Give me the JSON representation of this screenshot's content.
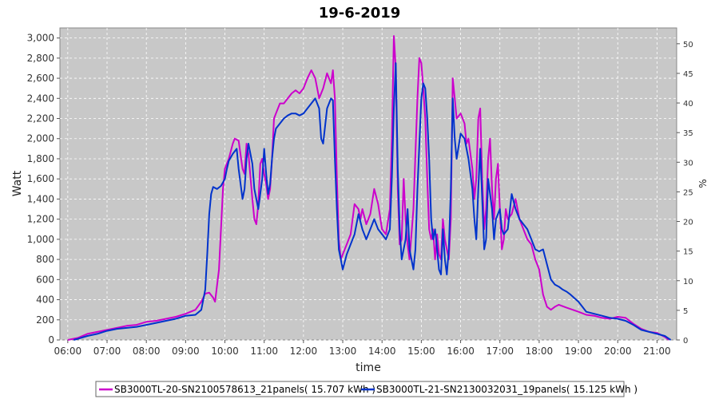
{
  "chart_data": {
    "type": "line",
    "title": "19-6-2019",
    "xlabel": "time",
    "ylabel": "Watt",
    "y2label": "%",
    "x_ticks": [
      "06:00",
      "07:00",
      "08:00",
      "09:00",
      "10:00",
      "11:00",
      "12:00",
      "13:00",
      "14:00",
      "15:00",
      "16:00",
      "17:00",
      "18:00",
      "19:00",
      "20:00",
      "21:00"
    ],
    "xlim": [
      5.8,
      21.5
    ],
    "ylim": [
      0,
      3100
    ],
    "y_ticks": [
      0,
      200,
      400,
      600,
      800,
      1000,
      1200,
      1400,
      1600,
      1800,
      2000,
      2200,
      2400,
      2600,
      2800,
      3000
    ],
    "y2lim": [
      0,
      52.67
    ],
    "y2_ticks": [
      0,
      5,
      10,
      15,
      20,
      25,
      30,
      35,
      40,
      45,
      50
    ],
    "grid": true,
    "legend_position": "bottom",
    "series": [
      {
        "name": "SB3000TL-20-SN2100578613_21panels( 15.707 kWh )",
        "color": "#cc00cc",
        "points": [
          [
            6.0,
            0
          ],
          [
            6.25,
            20
          ],
          [
            6.5,
            60
          ],
          [
            6.75,
            80
          ],
          [
            7.0,
            100
          ],
          [
            7.25,
            120
          ],
          [
            7.5,
            140
          ],
          [
            7.75,
            150
          ],
          [
            8.0,
            180
          ],
          [
            8.25,
            190
          ],
          [
            8.5,
            210
          ],
          [
            8.75,
            230
          ],
          [
            9.0,
            260
          ],
          [
            9.25,
            300
          ],
          [
            9.4,
            380
          ],
          [
            9.5,
            460
          ],
          [
            9.6,
            470
          ],
          [
            9.7,
            420
          ],
          [
            9.75,
            380
          ],
          [
            9.85,
            700
          ],
          [
            9.95,
            1500
          ],
          [
            10.0,
            1700
          ],
          [
            10.1,
            1800
          ],
          [
            10.2,
            1950
          ],
          [
            10.25,
            2000
          ],
          [
            10.35,
            1980
          ],
          [
            10.45,
            1700
          ],
          [
            10.5,
            1650
          ],
          [
            10.55,
            1950
          ],
          [
            10.6,
            1850
          ],
          [
            10.7,
            1400
          ],
          [
            10.75,
            1200
          ],
          [
            10.8,
            1150
          ],
          [
            10.85,
            1350
          ],
          [
            10.9,
            1750
          ],
          [
            10.95,
            1800
          ],
          [
            11.0,
            1650
          ],
          [
            11.05,
            1550
          ],
          [
            11.1,
            1400
          ],
          [
            11.15,
            1500
          ],
          [
            11.2,
            1800
          ],
          [
            11.25,
            2200
          ],
          [
            11.3,
            2250
          ],
          [
            11.4,
            2350
          ],
          [
            11.5,
            2350
          ],
          [
            11.6,
            2400
          ],
          [
            11.7,
            2450
          ],
          [
            11.8,
            2480
          ],
          [
            11.9,
            2450
          ],
          [
            12.0,
            2500
          ],
          [
            12.1,
            2600
          ],
          [
            12.2,
            2680
          ],
          [
            12.3,
            2600
          ],
          [
            12.4,
            2400
          ],
          [
            12.5,
            2500
          ],
          [
            12.6,
            2650
          ],
          [
            12.7,
            2550
          ],
          [
            12.75,
            2680
          ],
          [
            12.8,
            2400
          ],
          [
            12.85,
            1600
          ],
          [
            12.9,
            1000
          ],
          [
            12.95,
            800
          ],
          [
            13.0,
            850
          ],
          [
            13.1,
            950
          ],
          [
            13.2,
            1050
          ],
          [
            13.3,
            1350
          ],
          [
            13.4,
            1300
          ],
          [
            13.45,
            1200
          ],
          [
            13.5,
            1300
          ],
          [
            13.6,
            1150
          ],
          [
            13.7,
            1250
          ],
          [
            13.8,
            1500
          ],
          [
            13.9,
            1350
          ],
          [
            14.0,
            1100
          ],
          [
            14.1,
            1050
          ],
          [
            14.2,
            1300
          ],
          [
            14.25,
            2000
          ],
          [
            14.3,
            3020
          ],
          [
            14.35,
            2700
          ],
          [
            14.4,
            1500
          ],
          [
            14.45,
            950
          ],
          [
            14.5,
            1000
          ],
          [
            14.55,
            1600
          ],
          [
            14.6,
            1200
          ],
          [
            14.65,
            950
          ],
          [
            14.7,
            800
          ],
          [
            14.8,
            1300
          ],
          [
            14.9,
            2400
          ],
          [
            14.95,
            2800
          ],
          [
            15.0,
            2750
          ],
          [
            15.05,
            2500
          ],
          [
            15.1,
            2200
          ],
          [
            15.15,
            1600
          ],
          [
            15.2,
            1100
          ],
          [
            15.25,
            1000
          ],
          [
            15.3,
            1100
          ],
          [
            15.35,
            800
          ],
          [
            15.4,
            1050
          ],
          [
            15.45,
            850
          ],
          [
            15.5,
            800
          ],
          [
            15.55,
            1200
          ],
          [
            15.6,
            1000
          ],
          [
            15.65,
            900
          ],
          [
            15.7,
            800
          ],
          [
            15.75,
            1200
          ],
          [
            15.8,
            2600
          ],
          [
            15.85,
            2400
          ],
          [
            15.9,
            2200
          ],
          [
            16.0,
            2250
          ],
          [
            16.1,
            2150
          ],
          [
            16.15,
            1950
          ],
          [
            16.2,
            2000
          ],
          [
            16.3,
            1700
          ],
          [
            16.35,
            1400
          ],
          [
            16.4,
            1600
          ],
          [
            16.45,
            2200
          ],
          [
            16.5,
            2300
          ],
          [
            16.55,
            1600
          ],
          [
            16.6,
            1100
          ],
          [
            16.65,
            1300
          ],
          [
            16.7,
            1800
          ],
          [
            16.75,
            2000
          ],
          [
            16.8,
            1500
          ],
          [
            16.85,
            1200
          ],
          [
            16.9,
            1600
          ],
          [
            16.95,
            1750
          ],
          [
            17.0,
            1300
          ],
          [
            17.05,
            900
          ],
          [
            17.1,
            1000
          ],
          [
            17.15,
            1300
          ],
          [
            17.2,
            1200
          ],
          [
            17.3,
            1250
          ],
          [
            17.4,
            1400
          ],
          [
            17.5,
            1200
          ],
          [
            17.6,
            1100
          ],
          [
            17.7,
            1000
          ],
          [
            17.8,
            950
          ],
          [
            17.9,
            800
          ],
          [
            18.0,
            700
          ],
          [
            18.1,
            450
          ],
          [
            18.2,
            330
          ],
          [
            18.3,
            300
          ],
          [
            18.4,
            330
          ],
          [
            18.5,
            350
          ],
          [
            18.7,
            320
          ],
          [
            19.0,
            280
          ],
          [
            19.2,
            250
          ],
          [
            19.4,
            240
          ],
          [
            19.6,
            220
          ],
          [
            19.8,
            210
          ],
          [
            20.0,
            230
          ],
          [
            20.2,
            220
          ],
          [
            20.4,
            160
          ],
          [
            20.6,
            110
          ],
          [
            20.8,
            80
          ],
          [
            21.0,
            70
          ],
          [
            21.2,
            30
          ],
          [
            21.3,
            0
          ]
        ]
      },
      {
        "name": "SB3000TL-21-SN2130032031_19panels( 15.125 kWh )",
        "color": "#0033cc",
        "points": [
          [
            6.15,
            0
          ],
          [
            6.25,
            10
          ],
          [
            6.5,
            40
          ],
          [
            6.75,
            60
          ],
          [
            7.0,
            90
          ],
          [
            7.25,
            110
          ],
          [
            7.5,
            120
          ],
          [
            7.75,
            130
          ],
          [
            8.0,
            150
          ],
          [
            8.25,
            170
          ],
          [
            8.5,
            190
          ],
          [
            8.75,
            210
          ],
          [
            9.0,
            240
          ],
          [
            9.25,
            250
          ],
          [
            9.4,
            300
          ],
          [
            9.5,
            500
          ],
          [
            9.55,
            850
          ],
          [
            9.6,
            1250
          ],
          [
            9.65,
            1450
          ],
          [
            9.7,
            1520
          ],
          [
            9.8,
            1500
          ],
          [
            9.9,
            1530
          ],
          [
            10.0,
            1600
          ],
          [
            10.05,
            1700
          ],
          [
            10.1,
            1780
          ],
          [
            10.2,
            1850
          ],
          [
            10.3,
            1900
          ],
          [
            10.35,
            1700
          ],
          [
            10.45,
            1400
          ],
          [
            10.5,
            1500
          ],
          [
            10.55,
            1800
          ],
          [
            10.6,
            1950
          ],
          [
            10.7,
            1750
          ],
          [
            10.75,
            1500
          ],
          [
            10.85,
            1300
          ],
          [
            10.95,
            1600
          ],
          [
            11.0,
            1900
          ],
          [
            11.05,
            1650
          ],
          [
            11.1,
            1450
          ],
          [
            11.15,
            1550
          ],
          [
            11.2,
            1800
          ],
          [
            11.25,
            2000
          ],
          [
            11.3,
            2100
          ],
          [
            11.4,
            2150
          ],
          [
            11.5,
            2200
          ],
          [
            11.6,
            2230
          ],
          [
            11.7,
            2250
          ],
          [
            11.8,
            2250
          ],
          [
            11.9,
            2230
          ],
          [
            12.0,
            2250
          ],
          [
            12.1,
            2300
          ],
          [
            12.2,
            2350
          ],
          [
            12.3,
            2400
          ],
          [
            12.4,
            2300
          ],
          [
            12.45,
            2000
          ],
          [
            12.5,
            1950
          ],
          [
            12.6,
            2300
          ],
          [
            12.7,
            2400
          ],
          [
            12.75,
            2380
          ],
          [
            12.8,
            1800
          ],
          [
            12.85,
            1300
          ],
          [
            12.9,
            900
          ],
          [
            12.95,
            800
          ],
          [
            13.0,
            700
          ],
          [
            13.1,
            850
          ],
          [
            13.2,
            950
          ],
          [
            13.3,
            1050
          ],
          [
            13.4,
            1250
          ],
          [
            13.5,
            1100
          ],
          [
            13.6,
            1000
          ],
          [
            13.7,
            1100
          ],
          [
            13.8,
            1200
          ],
          [
            13.9,
            1100
          ],
          [
            14.0,
            1050
          ],
          [
            14.1,
            1000
          ],
          [
            14.2,
            1100
          ],
          [
            14.25,
            1600
          ],
          [
            14.3,
            2300
          ],
          [
            14.35,
            2750
          ],
          [
            14.4,
            1700
          ],
          [
            14.45,
            1100
          ],
          [
            14.5,
            800
          ],
          [
            14.6,
            1000
          ],
          [
            14.65,
            1300
          ],
          [
            14.7,
            900
          ],
          [
            14.8,
            700
          ],
          [
            14.85,
            900
          ],
          [
            14.9,
            1500
          ],
          [
            15.0,
            2400
          ],
          [
            15.05,
            2550
          ],
          [
            15.1,
            2500
          ],
          [
            15.15,
            2200
          ],
          [
            15.2,
            1800
          ],
          [
            15.25,
            1200
          ],
          [
            15.3,
            1000
          ],
          [
            15.35,
            1100
          ],
          [
            15.4,
            900
          ],
          [
            15.45,
            700
          ],
          [
            15.5,
            650
          ],
          [
            15.55,
            1100
          ],
          [
            15.6,
            800
          ],
          [
            15.65,
            650
          ],
          [
            15.7,
            900
          ],
          [
            15.75,
            1500
          ],
          [
            15.8,
            2400
          ],
          [
            15.85,
            2000
          ],
          [
            15.9,
            1800
          ],
          [
            16.0,
            2050
          ],
          [
            16.1,
            2000
          ],
          [
            16.2,
            1800
          ],
          [
            16.3,
            1500
          ],
          [
            16.35,
            1200
          ],
          [
            16.4,
            1000
          ],
          [
            16.45,
            1500
          ],
          [
            16.5,
            1900
          ],
          [
            16.55,
            1400
          ],
          [
            16.6,
            900
          ],
          [
            16.65,
            1000
          ],
          [
            16.7,
            1600
          ],
          [
            16.8,
            1300
          ],
          [
            16.85,
            1000
          ],
          [
            16.9,
            1200
          ],
          [
            17.0,
            1300
          ],
          [
            17.05,
            1100
          ],
          [
            17.1,
            1050
          ],
          [
            17.2,
            1100
          ],
          [
            17.3,
            1450
          ],
          [
            17.4,
            1300
          ],
          [
            17.5,
            1200
          ],
          [
            17.6,
            1150
          ],
          [
            17.7,
            1100
          ],
          [
            17.8,
            1000
          ],
          [
            17.9,
            900
          ],
          [
            18.0,
            880
          ],
          [
            18.1,
            900
          ],
          [
            18.2,
            750
          ],
          [
            18.3,
            600
          ],
          [
            18.4,
            550
          ],
          [
            18.5,
            530
          ],
          [
            18.6,
            500
          ],
          [
            18.7,
            480
          ],
          [
            18.8,
            450
          ],
          [
            19.0,
            380
          ],
          [
            19.2,
            280
          ],
          [
            19.4,
            260
          ],
          [
            19.6,
            240
          ],
          [
            19.8,
            220
          ],
          [
            20.0,
            210
          ],
          [
            20.2,
            190
          ],
          [
            20.4,
            150
          ],
          [
            20.6,
            100
          ],
          [
            20.8,
            80
          ],
          [
            21.0,
            60
          ],
          [
            21.2,
            40
          ],
          [
            21.35,
            0
          ]
        ]
      }
    ]
  }
}
